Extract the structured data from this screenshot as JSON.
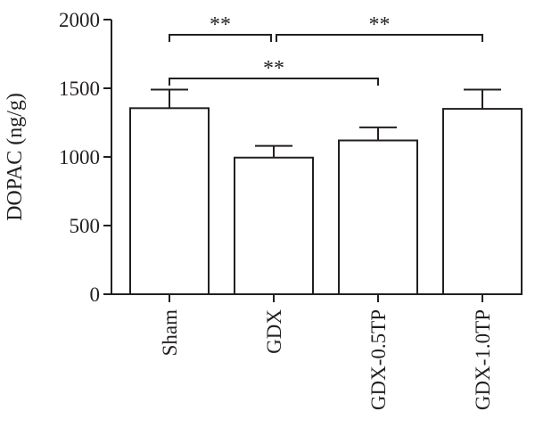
{
  "chart_data": {
    "type": "bar",
    "categories": [
      "Sham",
      "GDX",
      "GDX-0.5TP",
      "GDX-1.0TP"
    ],
    "values": [
      1355,
      995,
      1120,
      1350
    ],
    "errors": [
      135,
      85,
      95,
      140
    ],
    "title": "",
    "xlabel": "",
    "ylabel": "DOPAC (ng/g)",
    "ylim": [
      0,
      2000
    ],
    "yticks": [
      0,
      500,
      1000,
      1500,
      2000
    ],
    "bar_fill": "#ffffff",
    "stroke_color": "#231f20",
    "legend": "none",
    "grid": false,
    "significance": [
      {
        "from": "Sham",
        "to": "GDX",
        "label": "**"
      },
      {
        "from": "GDX",
        "to": "GDX-1.0TP",
        "label": "**"
      },
      {
        "from": "Sham",
        "to": "GDX-0.5TP",
        "label": "**"
      }
    ]
  }
}
